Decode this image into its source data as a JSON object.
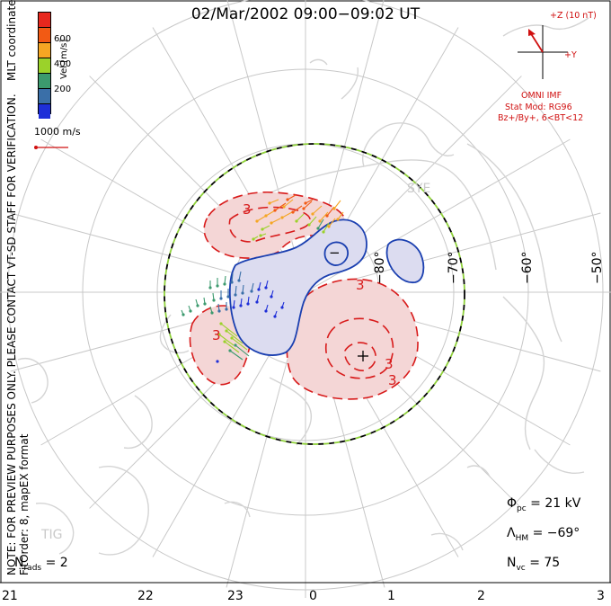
{
  "title": "02/Mar/2002 09:00−09:02 UT",
  "coordinate_system": "MLT coordinates",
  "colorbar": {
    "title": "Vel [m/s]",
    "ticks": [
      "600",
      "400",
      "200"
    ],
    "colors": [
      "#e8281e",
      "#f25a14",
      "#f5a623",
      "#9bd22a",
      "#3c9a6e",
      "#3a6fa8",
      "#1e2fd8"
    ]
  },
  "vector_scale": {
    "label": "1000 m/s",
    "color": "#d01010"
  },
  "imf": {
    "z_label": "+Z (10 nT)",
    "y_label": "+Y",
    "source": "OMNI IMF",
    "model": "Stat Mod: RG96",
    "bin": "Bz+/By+, 6<BT<12",
    "color": "#d01010"
  },
  "latitude_labels": [
    "−80°",
    "−70°",
    "−60°",
    "−50°"
  ],
  "station_labels": [
    "SYE",
    "TIG"
  ],
  "contour_labels": [
    "3",
    "3",
    "3",
    "3",
    "3",
    "−"
  ],
  "stats": {
    "phi_sym": "Φ",
    "phi_sub": "pc",
    "phi_val": "= 21 kV",
    "lam_sym": "Λ",
    "lam_sub": "HM",
    "lam_val": "= −69°",
    "nvc_sym": "N",
    "nvc_sub": "vc",
    "nvc_val": "= 75",
    "nrads_sym": "N",
    "nrads_sub": "rads",
    "nrads_val": "= 2"
  },
  "notice": "NOTE: FOR PREVIEW PURPOSES ONLY. PLEASE CONTACT VT-SD STAFF FOR VERIFICATION.",
  "fit_order": "FitOrder: 8, mapEX format",
  "mlt_hours": [
    "21",
    "22",
    "23",
    "0",
    "1",
    "2",
    "3"
  ],
  "colors": {
    "positive_cell": "#f4d6d6",
    "positive_line": "#d81b1b",
    "negative_cell": "#dcdcf0",
    "negative_line": "#1a3fb0",
    "grid": "#c8c8c8",
    "coast": "#d4d4d4",
    "hmb_a": "#000000",
    "hmb_b": "#8fd13a"
  }
}
